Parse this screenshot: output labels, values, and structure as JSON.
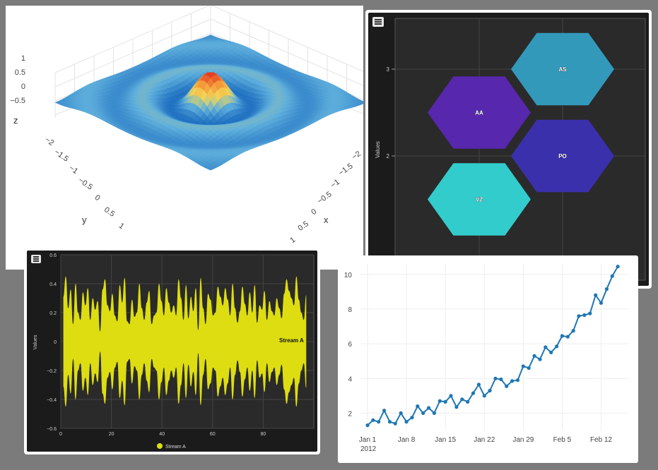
{
  "chart_data": [
    {
      "type": "surface",
      "xlabel": "x",
      "ylabel": "y",
      "zlabel": "z",
      "x_ticks": [
        "−2",
        "−1.5",
        "−1",
        "−0.5",
        "0",
        "0.5",
        "1"
      ],
      "y_ticks": [
        "−2",
        "−1.5",
        "−1",
        "−0.5",
        "0",
        "0.5",
        "1"
      ],
      "z_ticks": [
        "1",
        "0.5",
        "0",
        "−0.5"
      ],
      "xlim": [
        -2,
        2
      ],
      "ylim": [
        -2,
        2
      ],
      "zlim": [
        -0.6,
        1
      ],
      "function": "sin(r)/r (radial ripple, peak 1 at center)",
      "colorscale": [
        "#1e6fc1",
        "#5fb0dc",
        "#f2d857",
        "#f49a3a",
        "#e0301e"
      ],
      "grid": true
    },
    {
      "type": "honeycomb",
      "ylabel": "Values",
      "y_ticks": [
        "3",
        "2"
      ],
      "cells": [
        {
          "label": "AS",
          "x": 1,
          "y": 3.0,
          "color": "#3399bb"
        },
        {
          "label": "AA",
          "x": 0,
          "y": 2.5,
          "color": "#5727ad"
        },
        {
          "label": "PO",
          "x": 1,
          "y": 2.0,
          "color": "#3a30ac"
        },
        {
          "label": "VZ",
          "x": 0,
          "y": 1.5,
          "color": "#33cccc"
        }
      ],
      "grid": true,
      "theme": "dark"
    },
    {
      "type": "streamgraph",
      "ylabel": "Values",
      "x_ticks": [
        "0",
        "20",
        "40",
        "60",
        "80"
      ],
      "y_ticks": [
        "0.6",
        "0.4",
        "0.2",
        "0",
        "−0.2",
        "−0.4",
        "−0.6"
      ],
      "xlim": [
        0,
        100
      ],
      "ylim": [
        -0.6,
        0.6
      ],
      "series": [
        {
          "name": "Stream A",
          "color": "#dddd11",
          "values": [
            0.31,
            0.45,
            0.23,
            0.36,
            0.12,
            0.4,
            0.2,
            0.15,
            0.34,
            0.25,
            0.37,
            0.15,
            0.3,
            0.22,
            0.28,
            0.07,
            0.36,
            0.43,
            0.25,
            0.21,
            0.33,
            0.18,
            0.14,
            0.39,
            0.27,
            0.44,
            0.14,
            0.12,
            0.29,
            0.17,
            0.2,
            0.4,
            0.23,
            0.15,
            0.27,
            0.35,
            0.12,
            0.18,
            0.2,
            0.4,
            0.28,
            0.18,
            0.37,
            0.27,
            0.2,
            0.25,
            0.18,
            0.43,
            0.3,
            0.15,
            0.39,
            0.16,
            0.31,
            0.21,
            0.37,
            0.08,
            0.44,
            0.23,
            0.12,
            0.33,
            0.29,
            0.18,
            0.2,
            0.38,
            0.31,
            0.25,
            0.37,
            0.29,
            0.18,
            0.4,
            0.23,
            0.13,
            0.21,
            0.38,
            0.26,
            0.18,
            0.34,
            0.2,
            0.39,
            0.13,
            0.25,
            0.22,
            0.35,
            0.15,
            0.28,
            0.21,
            0.18,
            0.3,
            0.23,
            0.16,
            0.33,
            0.43,
            0.35,
            0.3,
            0.25,
            0.45,
            0.29,
            0.2,
            0.15,
            0.32
          ]
        }
      ],
      "legend": "bottom-center",
      "grid": true,
      "theme": "dark"
    },
    {
      "type": "line",
      "x_ticks": [
        "Jan 1",
        "Jan 8",
        "Jan 15",
        "Jan 22",
        "Jan 29",
        "Feb 5",
        "Feb 12"
      ],
      "x_tick_year": "2012",
      "y_ticks": [
        "2",
        "4",
        "6",
        "8",
        "10"
      ],
      "xlim": [
        "2012-01-01",
        "2012-02-16"
      ],
      "ylim": [
        1.0,
        10.6
      ],
      "start_date": "2012-01-01",
      "series": [
        {
          "color": "#1f77b4",
          "values": [
            1.3,
            1.6,
            1.5,
            2.15,
            1.5,
            1.4,
            2.0,
            1.5,
            1.75,
            2.4,
            2.0,
            2.3,
            2.0,
            2.7,
            2.65,
            3.0,
            2.35,
            2.8,
            2.65,
            3.15,
            3.65,
            3.0,
            3.3,
            4.0,
            3.95,
            3.55,
            3.85,
            3.9,
            4.7,
            4.6,
            5.3,
            5.1,
            5.8,
            5.5,
            5.85,
            6.45,
            6.4,
            6.75,
            7.6,
            7.65,
            7.75,
            8.8,
            8.35,
            9.15,
            9.9,
            10.45
          ]
        }
      ],
      "grid": true
    }
  ]
}
